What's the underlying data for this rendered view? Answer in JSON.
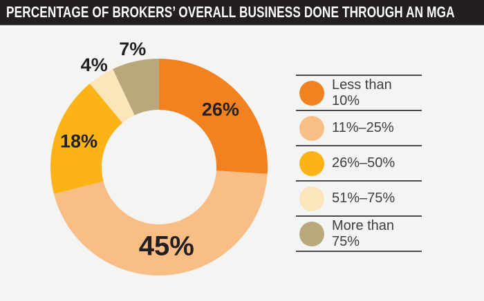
{
  "header": {
    "title": "PERCENTAGE OF BROKERS’ OVERALL BUSINESS DONE THROUGH AN MGA"
  },
  "colors": {
    "header_bg": "#231F20",
    "header_text": "#FFFFFF",
    "page_bg": "#F4F4F3",
    "label_text": "#231F20",
    "legend_text": "#3E3E40",
    "divider": "#4A4A4C"
  },
  "chart_data": {
    "type": "pie",
    "subtype": "donut",
    "title": "PERCENTAGE OF BROKERS’ OVERALL BUSINESS DONE THROUGH AN MGA",
    "start_angle_deg": 0,
    "direction": "clockwise",
    "inner_radius_ratio": 0.53,
    "legend_position": "right",
    "total": 100,
    "value_suffix": "%",
    "segments": [
      {
        "label": "Less than 10%",
        "value": 26,
        "display": "26%",
        "color": "#F2821F",
        "label_placement": "inside"
      },
      {
        "label": "11%–25%",
        "value": 45,
        "display": "45%",
        "color": "#F9BD86",
        "label_placement": "inside",
        "emphasis": true
      },
      {
        "label": "26%–50%",
        "value": 18,
        "display": "18%",
        "color": "#FBB316",
        "label_placement": "inside"
      },
      {
        "label": "51%–75%",
        "value": 4,
        "display": "4%",
        "color": "#FCE5BB",
        "label_placement": "outside"
      },
      {
        "label": "More than 75%",
        "value": 7,
        "display": "7%",
        "color": "#B9A87C",
        "label_placement": "outside"
      }
    ]
  }
}
